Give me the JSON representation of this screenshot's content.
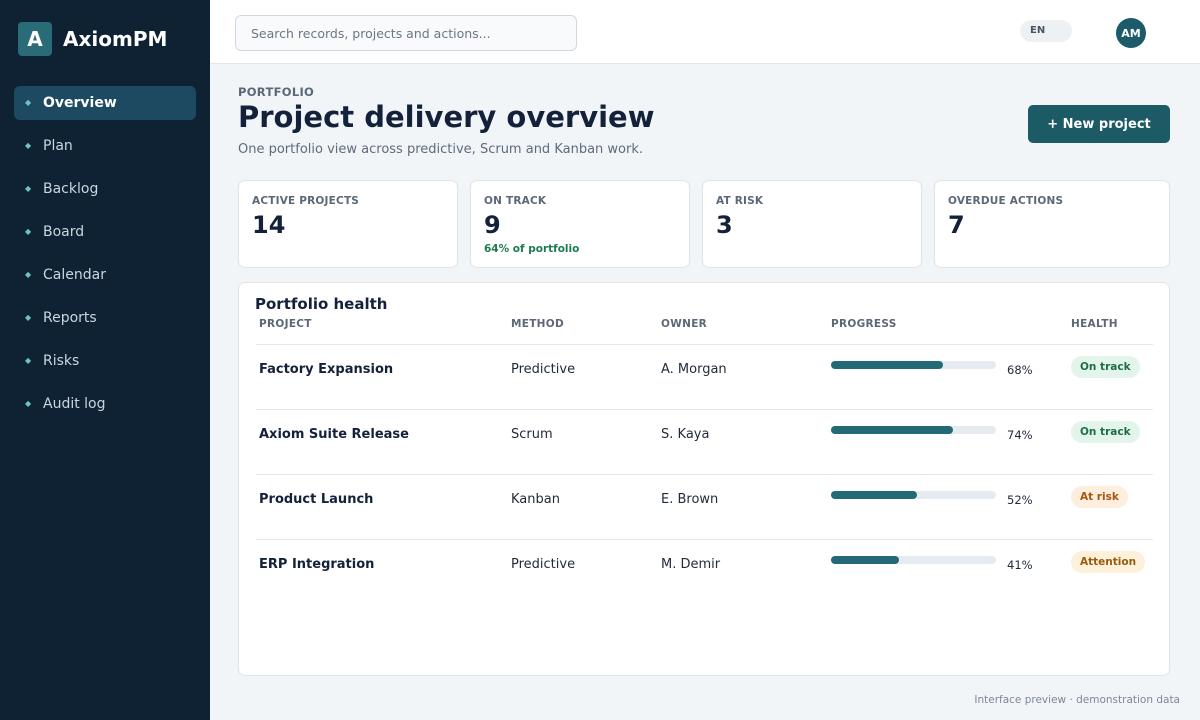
{
  "brand": {
    "mark": "A",
    "name": "AxiomPM"
  },
  "nav": [
    {
      "label": "Overview",
      "active": true
    },
    {
      "label": "Plan"
    },
    {
      "label": "Backlog"
    },
    {
      "label": "Board"
    },
    {
      "label": "Calendar"
    },
    {
      "label": "Reports"
    },
    {
      "label": "Risks"
    },
    {
      "label": "Audit log"
    }
  ],
  "topbar": {
    "search_placeholder": "Search records, projects and actions...",
    "language": "EN",
    "avatar_initials": "AM"
  },
  "header": {
    "eyebrow": "PORTFOLIO",
    "title": "Project delivery overview",
    "subtitle": "One portfolio view across predictive, Scrum and Kanban work.",
    "new_button": "+ New project"
  },
  "kpis": [
    {
      "label": "ACTIVE PROJECTS",
      "value": "14",
      "note": ""
    },
    {
      "label": "ON TRACK",
      "value": "9",
      "note": "64% of portfolio"
    },
    {
      "label": "AT RISK",
      "value": "3",
      "note": ""
    },
    {
      "label": "OVERDUE ACTIONS",
      "value": "7",
      "note": ""
    }
  ],
  "portfolio": {
    "title": "Portfolio health",
    "columns": {
      "project": "PROJECT",
      "method": "METHOD",
      "owner": "OWNER",
      "progress": "PROGRESS",
      "health": "HEALTH"
    },
    "rows": [
      {
        "project": "Factory Expansion",
        "method": "Predictive",
        "owner": "A. Morgan",
        "progress": 68,
        "progress_label": "68%",
        "health": "On track"
      },
      {
        "project": "Axiom Suite Release",
        "method": "Scrum",
        "owner": "S. Kaya",
        "progress": 74,
        "progress_label": "74%",
        "health": "On track"
      },
      {
        "project": "Product Launch",
        "method": "Kanban",
        "owner": "E. Brown",
        "progress": 52,
        "progress_label": "52%",
        "health": "At risk"
      },
      {
        "project": "ERP Integration",
        "method": "Predictive",
        "owner": "M. Demir",
        "progress": 41,
        "progress_label": "41%",
        "health": "Attention"
      }
    ]
  },
  "health_colors": {
    "On track": {
      "bg": "#e3f4ea",
      "fg": "#1d6e45"
    },
    "At risk": {
      "bg": "#fdeedd",
      "fg": "#a4560f"
    },
    "Attention": {
      "bg": "#fdf1dc",
      "fg": "#9a5a0b"
    }
  },
  "footer": {
    "note": "Interface preview · demonstration data"
  }
}
